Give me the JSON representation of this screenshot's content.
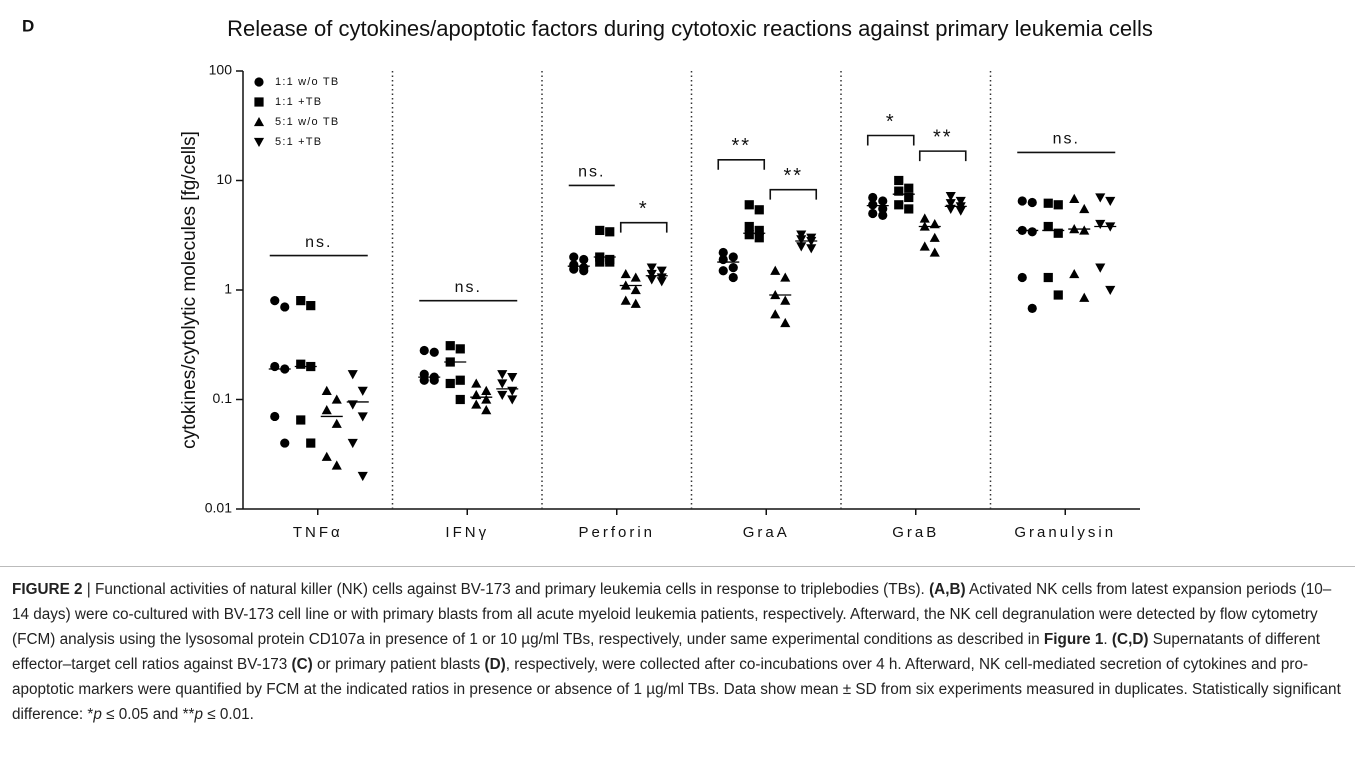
{
  "panel_label": "D",
  "chart_data": {
    "type": "dotplot",
    "title": "Release of cytokines/apoptotic factors during cytotoxic reactions against primary leukemia cells",
    "y_label": "cytokines/cytolytic molecules [fg/cells]",
    "y_scale": "log",
    "ylim": [
      0.01,
      100
    ],
    "yticks": [
      0.01,
      0.1,
      1,
      10,
      100
    ],
    "legend_position": "upper left",
    "categories": [
      "TNFα",
      "IFNγ",
      "Perforin",
      "GraA",
      "GraB",
      "Granulysin"
    ],
    "series": [
      {
        "name": "1:1 w/o TB",
        "marker": "circle",
        "color": "#000000",
        "values": [
          [
            0.8,
            0.7,
            0.2,
            0.19,
            0.07,
            0.04
          ],
          [
            0.28,
            0.27,
            0.17,
            0.16,
            0.15,
            0.15
          ],
          [
            2.0,
            1.9,
            1.7,
            1.6,
            1.55,
            1.5
          ],
          [
            2.2,
            2.0,
            1.9,
            1.6,
            1.5,
            1.3
          ],
          [
            7.0,
            6.5,
            6.0,
            5.5,
            5.0,
            4.8
          ],
          [
            6.5,
            6.3,
            3.5,
            3.4,
            1.3,
            0.68
          ]
        ],
        "means": [
          0.19,
          0.16,
          1.65,
          1.8,
          5.9,
          3.5
        ]
      },
      {
        "name": "1:1 +TB",
        "marker": "square",
        "color": "#000000",
        "values": [
          [
            0.8,
            0.72,
            0.21,
            0.2,
            0.065,
            0.04
          ],
          [
            0.31,
            0.29,
            0.22,
            0.15,
            0.14,
            0.1
          ],
          [
            3.5,
            3.4,
            2.0,
            1.9,
            1.8,
            1.8
          ],
          [
            6.0,
            5.4,
            3.8,
            3.5,
            3.2,
            3.0
          ],
          [
            10,
            8.5,
            8.0,
            7.0,
            6.0,
            5.5
          ],
          [
            6.2,
            6.0,
            3.8,
            3.3,
            1.3,
            0.9
          ]
        ],
        "means": [
          0.2,
          0.22,
          2.0,
          3.3,
          7.5,
          3.5
        ]
      },
      {
        "name": "5:1 w/o TB",
        "marker": "triangle-up",
        "color": "#000000",
        "values": [
          [
            0.12,
            0.1,
            0.08,
            0.06,
            0.03,
            0.025
          ],
          [
            0.14,
            0.12,
            0.11,
            0.1,
            0.09,
            0.08
          ],
          [
            1.4,
            1.3,
            1.1,
            1.0,
            0.8,
            0.75
          ],
          [
            1.5,
            1.3,
            0.9,
            0.8,
            0.6,
            0.5
          ],
          [
            4.5,
            4.0,
            3.8,
            3.0,
            2.5,
            2.2
          ],
          [
            6.8,
            5.5,
            3.6,
            3.5,
            1.4,
            0.85
          ]
        ],
        "means": [
          0.07,
          0.105,
          1.1,
          0.9,
          3.8,
          3.6
        ]
      },
      {
        "name": "5:1 +TB",
        "marker": "triangle-down",
        "color": "#000000",
        "values": [
          [
            0.17,
            0.12,
            0.09,
            0.07,
            0.04,
            0.02
          ],
          [
            0.17,
            0.16,
            0.14,
            0.12,
            0.11,
            0.1
          ],
          [
            1.6,
            1.5,
            1.4,
            1.3,
            1.25,
            1.2
          ],
          [
            3.2,
            3.0,
            2.9,
            2.8,
            2.5,
            2.4
          ],
          [
            7.2,
            6.5,
            6.2,
            5.8,
            5.5,
            5.3
          ],
          [
            7.0,
            6.5,
            4.0,
            3.8,
            1.6,
            1.0
          ]
        ],
        "means": [
          0.095,
          0.125,
          1.35,
          2.8,
          5.8,
          3.8
        ]
      }
    ],
    "significance": [
      {
        "category": 0,
        "series": [
          0,
          3
        ],
        "label": "ns."
      },
      {
        "category": 1,
        "series": [
          0,
          3
        ],
        "label": "ns."
      },
      {
        "category": 2,
        "series": [
          0,
          1
        ],
        "label": "ns."
      },
      {
        "category": 2,
        "series": [
          2,
          3
        ],
        "label": "*"
      },
      {
        "category": 3,
        "series": [
          0,
          1
        ],
        "label": "**"
      },
      {
        "category": 3,
        "series": [
          2,
          3
        ],
        "label": "**"
      },
      {
        "category": 4,
        "series": [
          0,
          1
        ],
        "label": "*"
      },
      {
        "category": 4,
        "series": [
          2,
          3
        ],
        "label": "**"
      },
      {
        "category": 5,
        "series": [
          0,
          3
        ],
        "label": "ns."
      }
    ]
  },
  "caption": [
    {
      "text": "FIGURE 2",
      "style": "bold"
    },
    {
      "text": " | Functional activities of natural killer (NK) cells against BV-173 and primary leukemia cells in response to triplebodies (TBs). ",
      "style": "normal"
    },
    {
      "text": "(A,B)",
      "style": "bold"
    },
    {
      "text": " Activated NK cells from latest expansion periods (10–14 days) were co-cultured with BV-173 cell line or with primary blasts from all acute myeloid leukemia patients, respectively. Afterward, the NK cell degranulation were detected by flow cytometry (FCM) analysis using the lysosomal protein CD107a in presence of 1 or 10 µg/ml TBs, respectively, under same experimental conditions as described in ",
      "style": "normal"
    },
    {
      "text": "Figure 1",
      "style": "bold"
    },
    {
      "text": ". ",
      "style": "normal"
    },
    {
      "text": "(C,D)",
      "style": "bold"
    },
    {
      "text": " Supernatants of different effector–target cell ratios against BV-173 ",
      "style": "normal"
    },
    {
      "text": "(C)",
      "style": "bold"
    },
    {
      "text": " or primary patient blasts ",
      "style": "normal"
    },
    {
      "text": "(D)",
      "style": "bold"
    },
    {
      "text": ", respectively, were collected after co-incubations over 4 h. Afterward, NK cell-mediated secretion of cytokines and pro-apoptotic markers were quantified by FCM at the indicated ratios in presence or absence of 1 µg/ml TBs. Data show mean ± SD from six experiments measured in duplicates. Statistically significant difference: *",
      "style": "normal"
    },
    {
      "text": "p",
      "style": "italic"
    },
    {
      "text": " ≤ 0.05 and **",
      "style": "normal"
    },
    {
      "text": "p",
      "style": "italic"
    },
    {
      "text": " ≤ 0.01.",
      "style": "normal"
    }
  ]
}
